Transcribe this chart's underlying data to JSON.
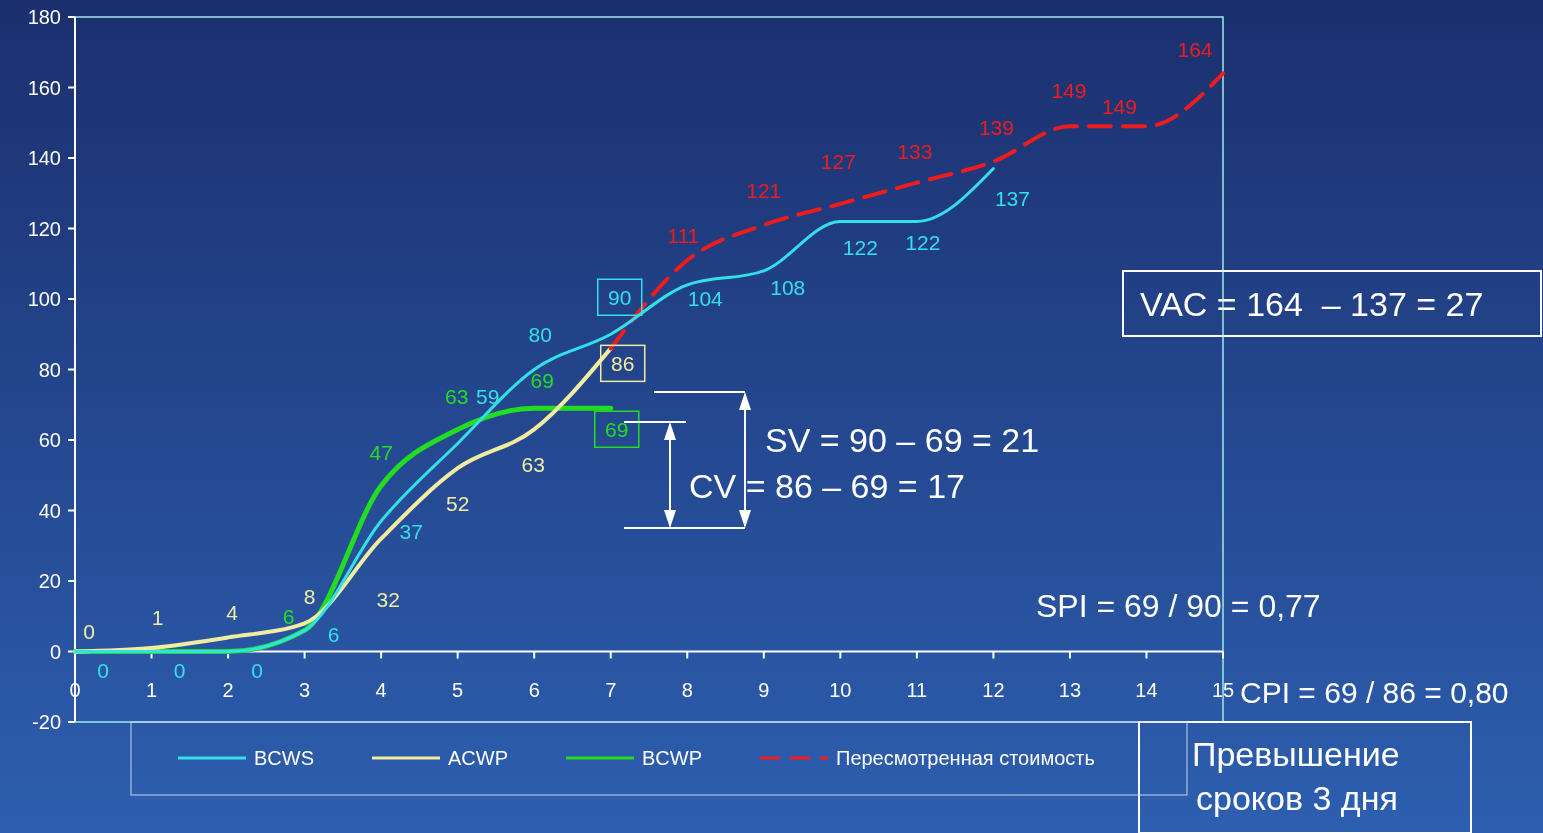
{
  "chart_data": {
    "type": "line",
    "xlim": [
      0,
      15
    ],
    "xticks": [
      0,
      1,
      2,
      3,
      4,
      5,
      6,
      7,
      8,
      9,
      10,
      11,
      12,
      13,
      14,
      15
    ],
    "ylim": [
      -20,
      180
    ],
    "yticks": [
      -20,
      0,
      20,
      40,
      60,
      80,
      100,
      120,
      140,
      160,
      180
    ],
    "legend": "bottom",
    "marker": "none",
    "series": [
      {
        "name": "BCWS",
        "color": "#33e0e8",
        "x": [
          0,
          1,
          2,
          3,
          4,
          5,
          6,
          7,
          8,
          9,
          10,
          11,
          12
        ],
        "values": [
          0,
          0,
          0,
          6,
          37,
          59,
          80,
          90,
          104,
          108,
          122,
          122,
          137
        ],
        "value_labels": [
          "0",
          "0",
          "0",
          "6",
          "37",
          "59",
          "80",
          "90",
          "104",
          "108",
          "122",
          "122",
          "137"
        ]
      },
      {
        "name": "ACWP",
        "color": "#f0eca0",
        "x": [
          0,
          1,
          2,
          3,
          4,
          5,
          6,
          7
        ],
        "values": [
          0,
          1,
          4,
          8,
          32,
          52,
          63,
          86
        ],
        "value_labels": [
          "0",
          "1",
          "4",
          "8",
          "32",
          "52",
          "63",
          "86"
        ]
      },
      {
        "name": "BCWP",
        "color": "#22dd22",
        "x": [
          0,
          1,
          2,
          3,
          4,
          5,
          6,
          7
        ],
        "values": [
          0,
          0,
          0,
          6,
          47,
          63,
          69,
          69
        ],
        "value_labels": [
          null,
          null,
          null,
          "6",
          "47",
          "63",
          "69",
          "69"
        ]
      },
      {
        "name": "Пересмотренная стоимость",
        "color": "#ee1c1c",
        "line_style": "dashed",
        "x": [
          7,
          8,
          9,
          10,
          11,
          12,
          13,
          14,
          15
        ],
        "values": [
          86,
          111,
          121,
          127,
          133,
          139,
          149,
          149,
          164
        ],
        "value_labels": [
          null,
          "111",
          "121",
          "127",
          "133",
          "139",
          "149",
          "149",
          "164"
        ]
      }
    ],
    "annotations": [
      "SV = 90 – 69 = 21",
      "CV = 86 – 69 = 17",
      "VAC = 164  – 137 = 27",
      "SPI = 69 / 90 = 0,77",
      "CPI = 69 / 86 = 0,80",
      "Превышение сроков 3 дня"
    ]
  }
}
